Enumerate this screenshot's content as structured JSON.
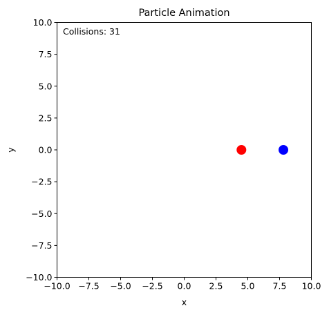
{
  "chart_data": {
    "type": "scatter",
    "title": "Particle Animation",
    "xlabel": "x",
    "ylabel": "y",
    "xlim": [
      -10,
      10
    ],
    "ylim": [
      -10,
      10
    ],
    "xticks": [
      -10,
      -7.5,
      -5,
      -2.5,
      0,
      2.5,
      5,
      7.5,
      10
    ],
    "yticks": [
      -10,
      -7.5,
      -5,
      -2.5,
      0,
      2.5,
      5,
      7.5,
      10
    ],
    "xtick_labels": [
      "−10.0",
      "−7.5",
      "−5.0",
      "−2.5",
      "0.0",
      "2.5",
      "5.0",
      "7.5",
      "10.0"
    ],
    "ytick_labels": [
      "−10.0",
      "−7.5",
      "−5.0",
      "−2.5",
      "0.0",
      "2.5",
      "5.0",
      "7.5",
      "10.0"
    ],
    "grid": false,
    "annotation": "Collisions: 31",
    "points": [
      {
        "x": 4.5,
        "y": 0.0,
        "color": "#ff0000"
      },
      {
        "x": 7.8,
        "y": 0.0,
        "color": "#0000ff"
      }
    ]
  }
}
